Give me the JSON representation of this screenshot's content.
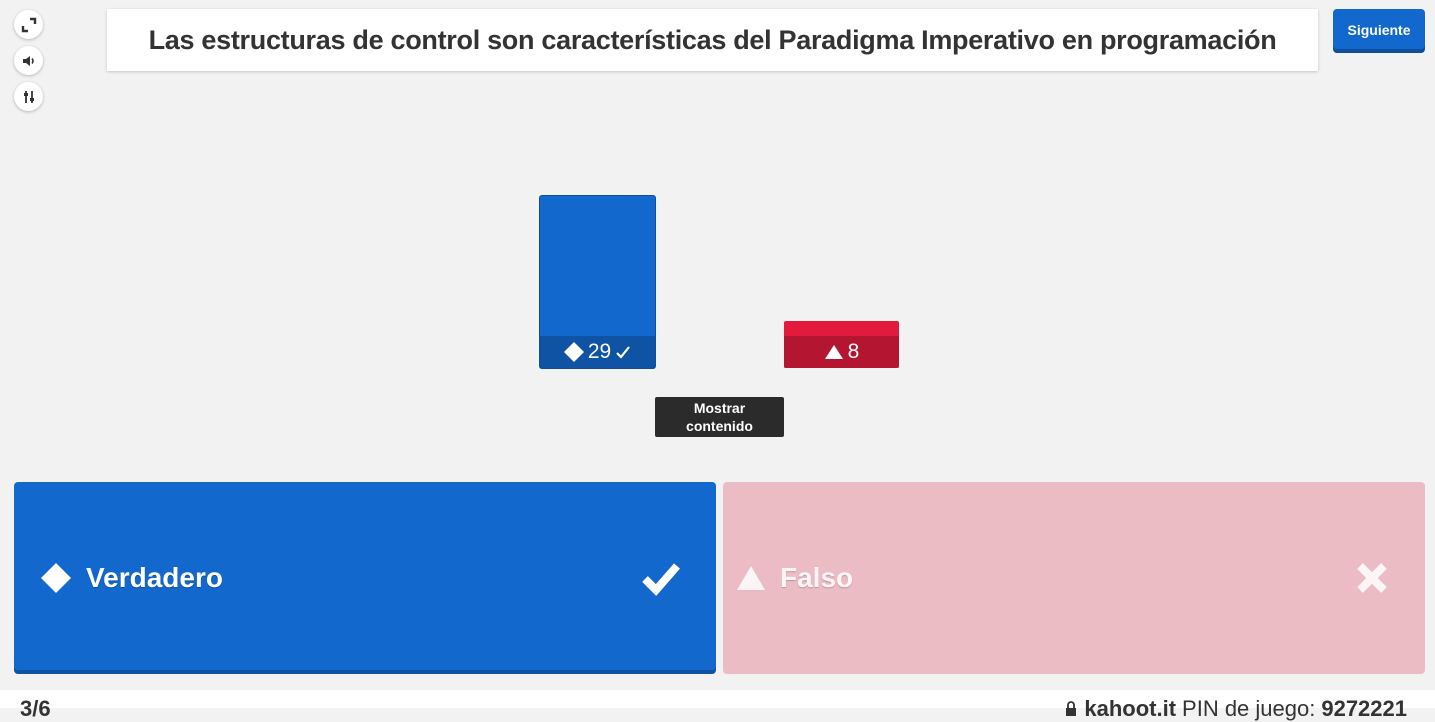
{
  "title": "Las estructuras de control son características del Paradigma Imperativo en programación",
  "next_button": "Siguiente",
  "side_icons": [
    "fullscreen-icon",
    "volume-icon",
    "settings-icon"
  ],
  "chart_data": {
    "type": "bar",
    "categories": [
      "Verdadero",
      "Falso"
    ],
    "values": [
      29,
      8
    ],
    "colors": [
      "#1368ce",
      "#e21b3c"
    ],
    "correct": [
      true,
      false
    ],
    "labels": [
      "29",
      "8"
    ]
  },
  "tooltip": {
    "line1": "Mostrar",
    "line2": "contenido"
  },
  "answers": [
    {
      "label": "Verdadero",
      "shape": "diamond-icon",
      "status": "check-icon",
      "color": "#1368ce"
    },
    {
      "label": "Falso",
      "shape": "triangle-icon",
      "status": "cross-icon",
      "color": "#ecbcc5"
    }
  ],
  "footer": {
    "counter": "3/6",
    "site": "kahoot.it",
    "pin_label": "PIN de juego:",
    "pin_value": "9272221"
  }
}
